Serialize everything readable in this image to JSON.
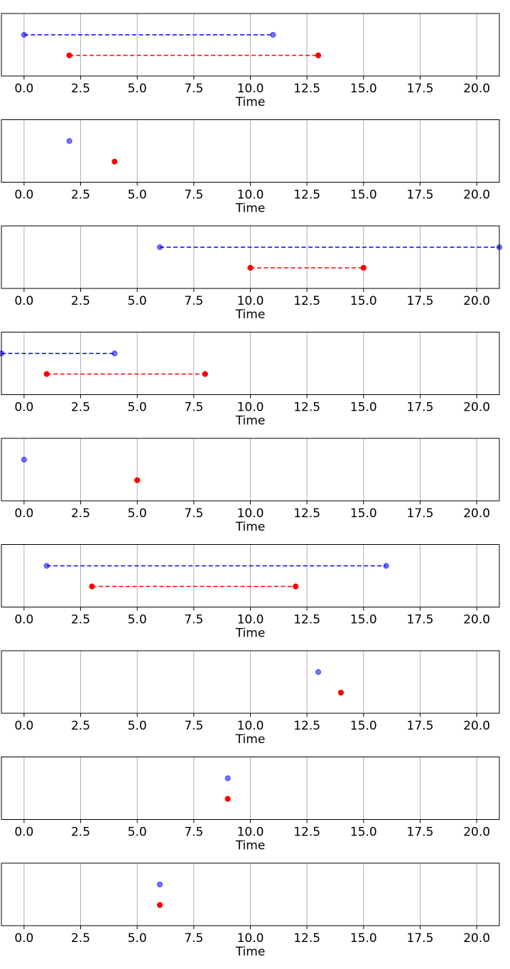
{
  "chart_data": [
    {
      "type": "scatter",
      "xlabel": "Time",
      "xlim": [
        -1,
        21
      ],
      "xticks": [
        0.0,
        2.5,
        5.0,
        7.5,
        10.0,
        12.5,
        15.0,
        17.5,
        20.0
      ],
      "xtick_labels": [
        "0.0",
        "2.5",
        "5.0",
        "7.5",
        "10.0",
        "12.5",
        "15.0",
        "17.5",
        "20.0"
      ],
      "grid": "vertical",
      "series": [
        {
          "color": "#0000ff",
          "x": [
            0,
            11
          ],
          "y": 2,
          "line": "dashed"
        },
        {
          "color": "#ff0000",
          "x": [
            2,
            13
          ],
          "y": 1,
          "line": "dashed"
        }
      ]
    },
    {
      "type": "scatter",
      "xlabel": "Time",
      "xlim": [
        -1,
        21
      ],
      "xticks": [
        0.0,
        2.5,
        5.0,
        7.5,
        10.0,
        12.5,
        15.0,
        17.5,
        20.0
      ],
      "xtick_labels": [
        "0.0",
        "2.5",
        "5.0",
        "7.5",
        "10.0",
        "12.5",
        "15.0",
        "17.5",
        "20.0"
      ],
      "grid": "vertical",
      "series": [
        {
          "color": "#0000ff",
          "x": [
            2
          ],
          "y": 2,
          "line": "none"
        },
        {
          "color": "#ff0000",
          "x": [
            4
          ],
          "y": 1,
          "line": "none"
        }
      ]
    },
    {
      "type": "scatter",
      "xlabel": "Time",
      "xlim": [
        -1,
        21
      ],
      "xticks": [
        0.0,
        2.5,
        5.0,
        7.5,
        10.0,
        12.5,
        15.0,
        17.5,
        20.0
      ],
      "xtick_labels": [
        "0.0",
        "2.5",
        "5.0",
        "7.5",
        "10.0",
        "12.5",
        "15.0",
        "17.5",
        "20.0"
      ],
      "grid": "vertical",
      "series": [
        {
          "color": "#0000ff",
          "x": [
            6,
            21
          ],
          "y": 2,
          "line": "dashed"
        },
        {
          "color": "#ff0000",
          "x": [
            10,
            15
          ],
          "y": 1,
          "line": "dashed"
        }
      ]
    },
    {
      "type": "scatter",
      "xlabel": "Time",
      "xlim": [
        -1,
        21
      ],
      "xticks": [
        0.0,
        2.5,
        5.0,
        7.5,
        10.0,
        12.5,
        15.0,
        17.5,
        20.0
      ],
      "xtick_labels": [
        "0.0",
        "2.5",
        "5.0",
        "7.5",
        "10.0",
        "12.5",
        "15.0",
        "17.5",
        "20.0"
      ],
      "grid": "vertical",
      "series": [
        {
          "color": "#0000ff",
          "x": [
            -1,
            4
          ],
          "y": 2,
          "line": "dashed"
        },
        {
          "color": "#ff0000",
          "x": [
            1,
            8
          ],
          "y": 1,
          "line": "dashed"
        }
      ]
    },
    {
      "type": "scatter",
      "xlabel": "Time",
      "xlim": [
        -1,
        21
      ],
      "xticks": [
        0.0,
        2.5,
        5.0,
        7.5,
        10.0,
        12.5,
        15.0,
        17.5,
        20.0
      ],
      "xtick_labels": [
        "0.0",
        "2.5",
        "5.0",
        "7.5",
        "10.0",
        "12.5",
        "15.0",
        "17.5",
        "20.0"
      ],
      "grid": "vertical",
      "series": [
        {
          "color": "#0000ff",
          "x": [
            0
          ],
          "y": 2,
          "line": "none"
        },
        {
          "color": "#ff0000",
          "x": [
            5
          ],
          "y": 1,
          "line": "none"
        }
      ]
    },
    {
      "type": "scatter",
      "xlabel": "Time",
      "xlim": [
        -1,
        21
      ],
      "xticks": [
        0.0,
        2.5,
        5.0,
        7.5,
        10.0,
        12.5,
        15.0,
        17.5,
        20.0
      ],
      "xtick_labels": [
        "0.0",
        "2.5",
        "5.0",
        "7.5",
        "10.0",
        "12.5",
        "15.0",
        "17.5",
        "20.0"
      ],
      "grid": "vertical",
      "series": [
        {
          "color": "#0000ff",
          "x": [
            1,
            16
          ],
          "y": 2,
          "line": "dashed"
        },
        {
          "color": "#ff0000",
          "x": [
            3,
            12
          ],
          "y": 1,
          "line": "dashed"
        }
      ]
    },
    {
      "type": "scatter",
      "xlabel": "Time",
      "xlim": [
        -1,
        21
      ],
      "xticks": [
        0.0,
        2.5,
        5.0,
        7.5,
        10.0,
        12.5,
        15.0,
        17.5,
        20.0
      ],
      "xtick_labels": [
        "0.0",
        "2.5",
        "5.0",
        "7.5",
        "10.0",
        "12.5",
        "15.0",
        "17.5",
        "20.0"
      ],
      "grid": "vertical",
      "series": [
        {
          "color": "#0000ff",
          "x": [
            13
          ],
          "y": 2,
          "line": "none"
        },
        {
          "color": "#ff0000",
          "x": [
            14
          ],
          "y": 1,
          "line": "none"
        }
      ]
    },
    {
      "type": "scatter",
      "xlabel": "Time",
      "xlim": [
        -1,
        21
      ],
      "xticks": [
        0.0,
        2.5,
        5.0,
        7.5,
        10.0,
        12.5,
        15.0,
        17.5,
        20.0
      ],
      "xtick_labels": [
        "0.0",
        "2.5",
        "5.0",
        "7.5",
        "10.0",
        "12.5",
        "15.0",
        "17.5",
        "20.0"
      ],
      "grid": "vertical",
      "series": [
        {
          "color": "#0000ff",
          "x": [
            9
          ],
          "y": 2,
          "line": "none"
        },
        {
          "color": "#ff0000",
          "x": [
            9
          ],
          "y": 1,
          "line": "none"
        }
      ]
    },
    {
      "type": "scatter",
      "xlabel": "Time",
      "xlim": [
        -1,
        21
      ],
      "xticks": [
        0.0,
        2.5,
        5.0,
        7.5,
        10.0,
        12.5,
        15.0,
        17.5,
        20.0
      ],
      "xtick_labels": [
        "0.0",
        "2.5",
        "5.0",
        "7.5",
        "10.0",
        "12.5",
        "15.0",
        "17.5",
        "20.0"
      ],
      "grid": "vertical",
      "series": [
        {
          "color": "#0000ff",
          "x": [
            6
          ],
          "y": 2,
          "line": "none"
        },
        {
          "color": "#ff0000",
          "x": [
            6
          ],
          "y": 1,
          "line": "none"
        }
      ]
    }
  ]
}
